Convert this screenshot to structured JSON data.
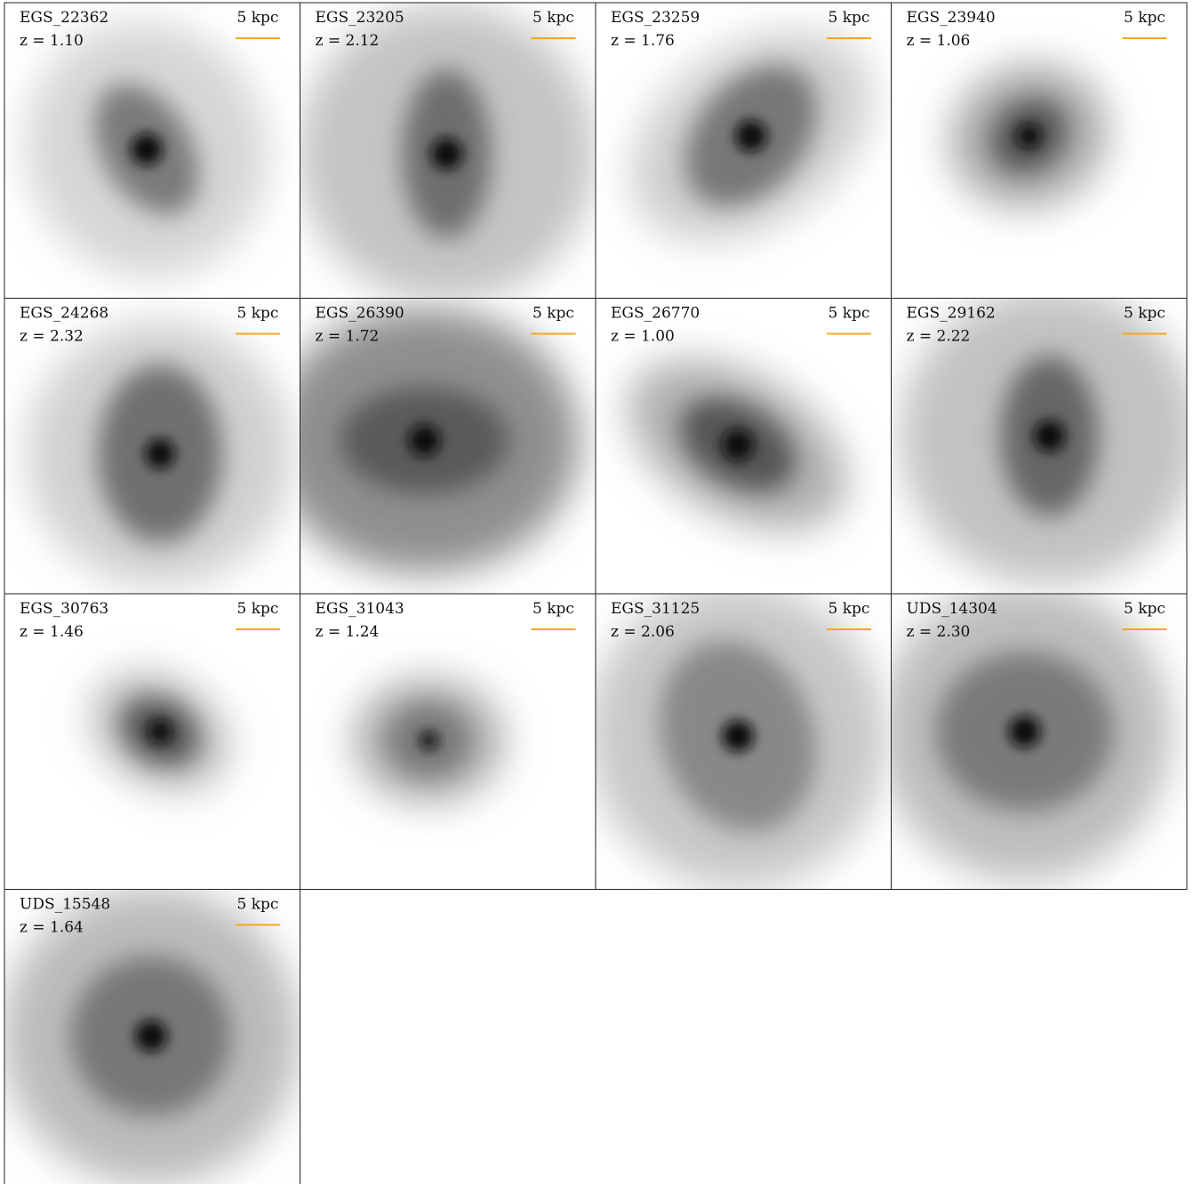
{
  "panels": [
    {
      "name": "EGS_22362",
      "redshift": "z = 1.10",
      "scale": "5 kpc"
    },
    {
      "name": "EGS_23205",
      "redshift": "z = 2.12",
      "scale": "5 kpc"
    },
    {
      "name": "EGS_23259",
      "redshift": "z = 1.76",
      "scale": "5 kpc"
    },
    {
      "name": "EGS_23940",
      "redshift": "z = 1.06",
      "scale": "5 kpc"
    },
    {
      "name": "EGS_24268",
      "redshift": "z = 2.32",
      "scale": "5 kpc"
    },
    {
      "name": "EGS_26390",
      "redshift": "z = 1.72",
      "scale": "5 kpc"
    },
    {
      "name": "EGS_26770",
      "redshift": "z = 1.00",
      "scale": "5 kpc"
    },
    {
      "name": "EGS_29162",
      "redshift": "z = 2.22",
      "scale": "5 kpc"
    },
    {
      "name": "EGS_30763",
      "redshift": "z = 1.46",
      "scale": "5 kpc"
    },
    {
      "name": "EGS_31043",
      "redshift": "z = 1.24",
      "scale": "5 kpc"
    },
    {
      "name": "EGS_31125",
      "redshift": "z = 2.06",
      "scale": "5 kpc"
    },
    {
      "name": "UDS_14304",
      "redshift": "z = 2.30",
      "scale": "5 kpc"
    },
    {
      "name": "UDS_15548",
      "redshift": "z = 1.64",
      "scale": "5 kpc"
    }
  ]
}
